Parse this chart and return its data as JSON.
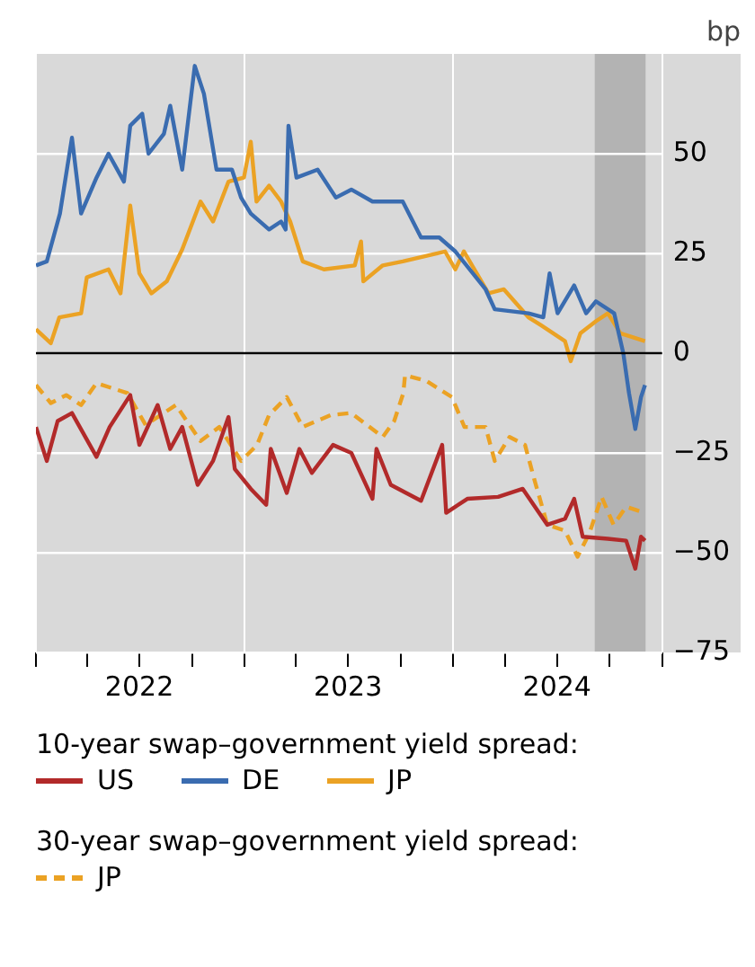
{
  "chart_data": {
    "type": "line",
    "ylabel": "bp",
    "xlim": [
      "2022-01-01",
      "2025-01-01"
    ],
    "ylim": [
      -75,
      75
    ],
    "xticks": [
      {
        "value": "2022-01-01",
        "label": null
      },
      {
        "value": "2022-04-01",
        "label": null
      },
      {
        "value": "2022-07-01",
        "label": "2022"
      },
      {
        "value": "2022-10-01",
        "label": null
      },
      {
        "value": "2023-01-01",
        "label": null
      },
      {
        "value": "2023-04-01",
        "label": null
      },
      {
        "value": "2023-07-01",
        "label": "2023"
      },
      {
        "value": "2023-10-01",
        "label": null
      },
      {
        "value": "2024-01-01",
        "label": null
      },
      {
        "value": "2024-04-01",
        "label": null
      },
      {
        "value": "2024-07-01",
        "label": "2024"
      },
      {
        "value": "2024-10-01",
        "label": null
      },
      {
        "value": "2025-01-01",
        "label": null
      }
    ],
    "yticks": [
      -75,
      -50,
      -25,
      0,
      25,
      50
    ],
    "grid": true,
    "legend": "bottom",
    "marker": "none",
    "bands": [
      {
        "axis": "x",
        "from": "2024-09-05",
        "to": "2024-12-03",
        "color": "#b3b3b3"
      }
    ],
    "annotations": [
      "10-year swap–government yield spread:",
      "30-year swap–government yield spread:"
    ],
    "series": [
      {
        "name": "US",
        "color": "#b22a2a",
        "line_style": "solid",
        "x": [
          "2022-01-01",
          "2022-01-20",
          "2022-02-08",
          "2022-03-05",
          "2022-04-17",
          "2022-05-10",
          "2022-06-15",
          "2022-07-01",
          "2022-08-02",
          "2022-08-24",
          "2022-09-14",
          "2022-10-11",
          "2022-11-07",
          "2022-12-04",
          "2022-12-15",
          "2023-01-12",
          "2023-02-08",
          "2023-02-16",
          "2023-03-16",
          "2023-04-07",
          "2023-04-29",
          "2023-06-05",
          "2023-07-07",
          "2023-08-13",
          "2023-08-20",
          "2023-09-14",
          "2023-11-06",
          "2023-12-13",
          "2023-12-20",
          "2024-01-26",
          "2024-03-20",
          "2024-05-02",
          "2024-06-14",
          "2024-07-15",
          "2024-07-31",
          "2024-08-15",
          "2024-09-28",
          "2024-10-30",
          "2024-11-15",
          "2024-11-25",
          "2024-12-02"
        ],
        "values": [
          -18.5,
          -27,
          -17,
          -15,
          -26,
          -18.5,
          -10.5,
          -23,
          -13,
          -24,
          -18.5,
          -33,
          -27,
          -16,
          -29,
          -34,
          -38,
          -24,
          -35,
          -24,
          -30,
          -23,
          -25,
          -36.5,
          -24,
          -33,
          -37,
          -23,
          -40,
          -36.5,
          -36,
          -34,
          -43,
          -41.5,
          -36.5,
          -46,
          -46.5,
          -47,
          -54,
          -46,
          -47
        ]
      },
      {
        "name": "DE",
        "color": "#3a6cb0",
        "line_style": "solid",
        "x": [
          "2022-01-01",
          "2022-01-20",
          "2022-02-12",
          "2022-03-05",
          "2022-03-21",
          "2022-04-17",
          "2022-05-08",
          "2022-06-04",
          "2022-06-15",
          "2022-07-06",
          "2022-07-17",
          "2022-08-13",
          "2022-08-24",
          "2022-09-14",
          "2022-10-06",
          "2022-10-22",
          "2022-11-13",
          "2022-12-10",
          "2022-12-26",
          "2023-01-12",
          "2023-02-13",
          "2023-03-06",
          "2023-03-14",
          "2023-03-19",
          "2023-04-02",
          "2023-05-09",
          "2023-06-10",
          "2023-07-07",
          "2023-08-13",
          "2023-10-05",
          "2023-11-06",
          "2023-12-08",
          "2024-01-05",
          "2024-02-27",
          "2024-03-14",
          "2024-05-12",
          "2024-06-07",
          "2024-06-18",
          "2024-07-02",
          "2024-07-31",
          "2024-08-21",
          "2024-09-07",
          "2024-10-09",
          "2024-10-25",
          "2024-11-04",
          "2024-11-15",
          "2024-11-25",
          "2024-12-02"
        ],
        "values": [
          22,
          23,
          35,
          54,
          35,
          44,
          50,
          43,
          57,
          60,
          50,
          55,
          62,
          46,
          72,
          65,
          46,
          46,
          39,
          35,
          31,
          33,
          31,
          57,
          44,
          46,
          39,
          41,
          38,
          38,
          29,
          29,
          25.5,
          16,
          11,
          10,
          9,
          20,
          10,
          17,
          10,
          13,
          10,
          0,
          -10,
          -19,
          -11,
          -8
        ]
      },
      {
        "name": "JP",
        "color": "#eba224",
        "line_style": "solid",
        "x": [
          "2022-01-01",
          "2022-01-27",
          "2022-02-11",
          "2022-03-21",
          "2022-03-31",
          "2022-05-08",
          "2022-05-29",
          "2022-06-15",
          "2022-07-01",
          "2022-07-22",
          "2022-08-18",
          "2022-09-14",
          "2022-10-16",
          "2022-11-07",
          "2022-12-04",
          "2022-12-31",
          "2023-01-12",
          "2023-01-22",
          "2023-02-13",
          "2023-03-06",
          "2023-03-22",
          "2023-04-13",
          "2023-05-20",
          "2023-07-13",
          "2023-07-24",
          "2023-07-28",
          "2023-08-31",
          "2023-10-05",
          "2023-12-18",
          "2024-01-05",
          "2024-01-20",
          "2024-03-03",
          "2024-03-30",
          "2024-05-12",
          "2024-06-03",
          "2024-07-15",
          "2024-07-25",
          "2024-08-11",
          "2024-09-07",
          "2024-09-28",
          "2024-10-20",
          "2024-12-02"
        ],
        "values": [
          6,
          2.5,
          9,
          10,
          19,
          21,
          15,
          37,
          20,
          15,
          18,
          26,
          38,
          33,
          43,
          44,
          53,
          38,
          42,
          38,
          33,
          23,
          21,
          22,
          28,
          18,
          22,
          23,
          25.5,
          21,
          25.5,
          15,
          16,
          9,
          7,
          3,
          -2,
          5,
          8,
          10,
          5,
          3
        ]
      },
      {
        "name": "JP",
        "color": "#eba224",
        "line_style": "dashed",
        "x": [
          "2022-01-01",
          "2022-01-27",
          "2022-02-23",
          "2022-03-21",
          "2022-04-17",
          "2022-06-10",
          "2022-07-12",
          "2022-09-03",
          "2022-10-16",
          "2022-11-18",
          "2022-12-26",
          "2023-01-23",
          "2023-02-13",
          "2023-03-16",
          "2023-04-13",
          "2023-06-01",
          "2023-07-07",
          "2023-08-31",
          "2023-09-20",
          "2023-10-06",
          "2023-10-09",
          "2023-11-16",
          "2023-12-30",
          "2024-01-21",
          "2024-02-27",
          "2024-03-14",
          "2024-04-09",
          "2024-05-06",
          "2024-05-22",
          "2024-06-14",
          "2024-07-15",
          "2024-08-06",
          "2024-08-27",
          "2024-09-17",
          "2024-10-08",
          "2024-10-30",
          "2024-12-02"
        ],
        "values": [
          -8,
          -12.5,
          -10.5,
          -13,
          -7.5,
          -10,
          -18,
          -13,
          -22,
          -18.5,
          -27,
          -23,
          -15.5,
          -11,
          -18.5,
          -15.5,
          -15,
          -21,
          -17,
          -10,
          -5.5,
          -7,
          -11,
          -18.5,
          -18.5,
          -27,
          -21,
          -23,
          -31.5,
          -43,
          -44.5,
          -51,
          -45,
          -36,
          -43,
          -38.5,
          -40
        ]
      }
    ]
  }
}
